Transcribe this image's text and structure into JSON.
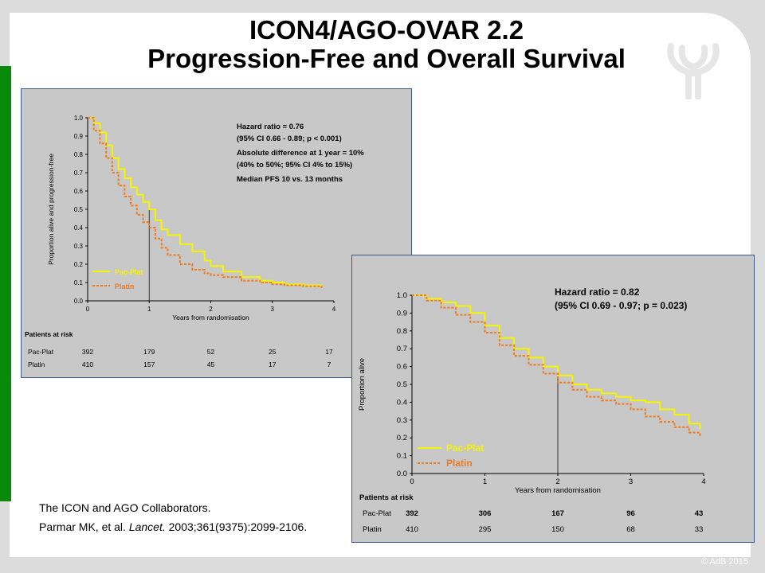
{
  "slide": {
    "title_line1": "ICON4/AGO-OVAR 2.2",
    "title_line2": "Progression-Free and Overall Survival",
    "citation_line1": "The ICON and AGO Collaborators.",
    "citation_line2_prefix": "Parmar MK, et al. ",
    "citation_journal": "Lancet.",
    "citation_line2_suffix": " 2003;361(9375):2099-2106.",
    "copyright": "© AdB 2015",
    "colors": {
      "accent_green": "#0a8a0a",
      "pacplat": "#f5f500",
      "platin": "#f07a1e",
      "panel_bg": "#c8c8c8",
      "panel_border": "#3b5a8a"
    }
  },
  "chart_data": [
    {
      "type": "line",
      "name": "pfs",
      "xlabel": "Years from randomisation",
      "ylabel": "Proportion alive and progression-free",
      "xlim": [
        0,
        4
      ],
      "ylim": [
        0,
        1.0
      ],
      "x_ticks": [
        "0",
        "1",
        "2",
        "3",
        "4"
      ],
      "y_ticks": [
        "0.0",
        "0.1",
        "0.2",
        "0.3",
        "0.4",
        "0.5",
        "0.6",
        "0.7",
        "0.8",
        "0.9",
        "1.0"
      ],
      "reference_x": 1,
      "legend": {
        "placement": "bottom-left",
        "entries": [
          "Pac-Plat",
          "Platin"
        ]
      },
      "annotations": [
        "Hazard ratio = 0.76",
        "(95% CI 0.66 - 0.89; p < 0.001)",
        "Absolute difference at 1 year = 10%",
        "(40% to 50%; 95% CI 4% to 15%)",
        "Median PFS 10  vs. 13 months"
      ],
      "series": [
        {
          "name": "Pac-Plat",
          "x": [
            0,
            0.1,
            0.2,
            0.3,
            0.4,
            0.5,
            0.6,
            0.7,
            0.8,
            0.9,
            1.0,
            1.1,
            1.2,
            1.3,
            1.5,
            1.7,
            1.9,
            2.0,
            2.2,
            2.5,
            2.8,
            3.0,
            3.2,
            3.5,
            3.8
          ],
          "y": [
            1.0,
            0.97,
            0.92,
            0.85,
            0.78,
            0.72,
            0.67,
            0.62,
            0.58,
            0.54,
            0.5,
            0.44,
            0.39,
            0.36,
            0.31,
            0.27,
            0.22,
            0.19,
            0.16,
            0.13,
            0.11,
            0.1,
            0.09,
            0.085,
            0.08
          ]
        },
        {
          "name": "Platin",
          "x": [
            0,
            0.1,
            0.2,
            0.3,
            0.4,
            0.5,
            0.6,
            0.7,
            0.8,
            0.9,
            1.0,
            1.1,
            1.2,
            1.3,
            1.5,
            1.7,
            1.9,
            2.0,
            2.2,
            2.5,
            2.8,
            3.0,
            3.2,
            3.5,
            3.8
          ],
          "y": [
            1.0,
            0.93,
            0.86,
            0.78,
            0.7,
            0.63,
            0.57,
            0.52,
            0.47,
            0.43,
            0.4,
            0.34,
            0.29,
            0.25,
            0.2,
            0.17,
            0.15,
            0.14,
            0.13,
            0.11,
            0.1,
            0.09,
            0.085,
            0.08,
            0.07
          ]
        }
      ],
      "risk_table": {
        "header": "Patients at risk",
        "rows": [
          {
            "label": "Pac-Plat",
            "values": [
              "392",
              "179",
              "52",
              "25",
              "17"
            ]
          },
          {
            "label": "Platin",
            "values": [
              "410",
              "157",
              "45",
              "17",
              "7"
            ]
          }
        ]
      }
    },
    {
      "type": "line",
      "name": "os",
      "xlabel": "Years from randomisation",
      "ylabel": "Proportion alive",
      "xlim": [
        0,
        4
      ],
      "ylim": [
        0,
        1.0
      ],
      "x_ticks": [
        "0",
        "1",
        "2",
        "3",
        "4"
      ],
      "y_ticks": [
        "0.0",
        "0.1",
        "0.2",
        "0.3",
        "0.4",
        "0.5",
        "0.6",
        "0.7",
        "0.8",
        "0.9",
        "1.0"
      ],
      "reference_x": 2,
      "legend": {
        "placement": "bottom-left",
        "entries": [
          "Pac-Plat",
          "Platin"
        ]
      },
      "annotations": [
        "Hazard ratio = 0.82",
        "(95% CI 0.69 - 0.97; p = 0.023)"
      ],
      "series": [
        {
          "name": "Pac-Plat",
          "x": [
            0,
            0.2,
            0.4,
            0.6,
            0.8,
            1.0,
            1.2,
            1.4,
            1.6,
            1.8,
            2.0,
            2.2,
            2.4,
            2.6,
            2.8,
            3.0,
            3.2,
            3.4,
            3.6,
            3.8,
            3.95
          ],
          "y": [
            1.0,
            0.98,
            0.96,
            0.94,
            0.9,
            0.83,
            0.76,
            0.7,
            0.65,
            0.6,
            0.55,
            0.5,
            0.47,
            0.45,
            0.43,
            0.41,
            0.4,
            0.36,
            0.33,
            0.28,
            0.25
          ]
        },
        {
          "name": "Platin",
          "x": [
            0,
            0.2,
            0.4,
            0.6,
            0.8,
            1.0,
            1.2,
            1.4,
            1.6,
            1.8,
            2.0,
            2.2,
            2.4,
            2.6,
            2.8,
            3.0,
            3.2,
            3.4,
            3.6,
            3.8,
            3.95
          ],
          "y": [
            1.0,
            0.97,
            0.93,
            0.89,
            0.85,
            0.79,
            0.72,
            0.66,
            0.61,
            0.56,
            0.51,
            0.47,
            0.43,
            0.41,
            0.39,
            0.36,
            0.32,
            0.29,
            0.26,
            0.23,
            0.21
          ]
        }
      ],
      "risk_table": {
        "header": "Patients at risk",
        "rows": [
          {
            "label": "Pac-Plat",
            "values": [
              "392",
              "306",
              "167",
              "96",
              "43"
            ]
          },
          {
            "label": "Platin",
            "values": [
              "410",
              "295",
              "150",
              "68",
              "33"
            ]
          }
        ]
      }
    }
  ]
}
